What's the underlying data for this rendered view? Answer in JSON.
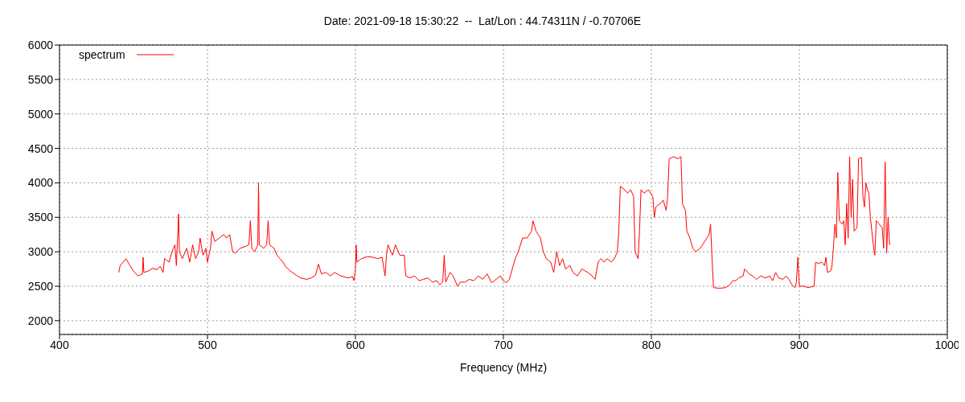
{
  "chart_data": {
    "type": "line",
    "title": "Date: 2021-09-18 15:30:22  --  Lat/Lon : 44.74311N / -0.70706E",
    "xlabel": "Frequency (MHz)",
    "x": [
      440,
      441,
      443,
      445,
      447,
      450,
      453,
      456,
      456.5,
      457,
      460,
      463,
      466,
      468,
      470,
      471,
      474,
      476,
      478,
      479,
      480.5,
      481,
      483,
      486,
      488,
      490,
      492,
      494,
      495,
      497,
      499,
      500,
      502,
      503,
      505,
      508,
      511,
      513,
      515,
      517,
      519,
      522,
      526,
      528,
      529,
      530,
      532,
      534,
      534.5,
      535,
      538,
      540,
      541,
      542,
      545,
      547,
      549,
      551,
      553,
      556,
      560,
      563,
      567,
      570,
      573,
      575,
      577,
      580,
      583,
      586,
      590,
      595,
      598,
      599,
      600,
      600.5,
      601,
      604,
      608,
      612,
      615,
      618,
      620,
      621,
      622,
      625,
      627,
      630,
      633,
      634,
      637,
      640,
      643,
      646,
      649,
      652,
      655,
      657,
      659,
      660,
      661,
      664,
      666,
      669,
      671,
      674,
      677,
      680,
      683,
      686,
      689,
      692,
      695,
      698,
      700,
      702,
      704,
      706,
      708,
      710,
      713,
      716,
      719,
      720,
      722,
      725,
      727,
      729,
      732,
      734,
      736,
      738,
      740,
      742,
      745,
      747,
      750,
      753,
      757,
      760,
      762,
      764,
      766,
      768,
      770,
      773,
      775,
      777,
      778,
      779,
      782,
      784,
      786,
      788,
      789,
      790,
      791,
      792,
      793,
      795,
      798,
      801,
      802,
      803,
      806,
      808,
      810,
      811,
      812,
      815,
      818,
      820,
      821,
      823,
      824,
      826,
      828,
      830,
      833,
      836,
      839,
      840,
      841,
      842,
      846,
      850,
      853,
      855,
      857,
      859,
      862,
      863,
      866,
      869,
      871,
      874,
      877,
      880,
      882,
      884,
      886,
      889,
      891,
      893,
      895,
      897,
      898,
      899,
      900,
      903,
      906,
      910,
      911,
      913,
      915,
      917,
      918,
      919,
      921,
      922,
      923,
      924,
      925,
      926,
      927,
      929,
      930,
      931,
      932,
      933,
      934,
      935,
      936,
      937,
      939,
      940,
      942,
      943,
      944,
      945,
      946,
      947,
      948,
      949,
      950,
      951,
      952,
      954,
      956,
      957,
      958,
      959,
      960,
      961
    ],
    "series": [
      {
        "name": "spectrum",
        "color": "#ff0000",
        "values": [
          2700,
          2800,
          2850,
          2900,
          2820,
          2720,
          2650,
          2680,
          2920,
          2700,
          2720,
          2760,
          2740,
          2790,
          2700,
          2900,
          2850,
          3000,
          3100,
          2800,
          3550,
          3000,
          2900,
          3050,
          2850,
          3100,
          2900,
          3000,
          3200,
          2950,
          3050,
          2850,
          3050,
          3300,
          3150,
          3200,
          3250,
          3200,
          3250,
          3000,
          2980,
          3050,
          3080,
          3100,
          3450,
          3050,
          3000,
          3100,
          4000,
          3100,
          3050,
          3100,
          3450,
          3100,
          3050,
          2950,
          2900,
          2850,
          2780,
          2720,
          2660,
          2620,
          2600,
          2620,
          2660,
          2820,
          2680,
          2700,
          2650,
          2700,
          2650,
          2620,
          2640,
          2580,
          2750,
          3100,
          2850,
          2900,
          2930,
          2920,
          2900,
          2920,
          2650,
          2950,
          3100,
          2950,
          3100,
          2950,
          2950,
          2650,
          2620,
          2650,
          2580,
          2600,
          2620,
          2560,
          2580,
          2520,
          2560,
          2950,
          2560,
          2700,
          2650,
          2500,
          2560,
          2560,
          2600,
          2580,
          2650,
          2600,
          2680,
          2550,
          2600,
          2650,
          2580,
          2550,
          2600,
          2750,
          2900,
          3000,
          3200,
          3200,
          3300,
          3450,
          3300,
          3200,
          3000,
          2900,
          2850,
          2700,
          3000,
          2800,
          2900,
          2750,
          2800,
          2700,
          2650,
          2750,
          2700,
          2650,
          2600,
          2850,
          2900,
          2850,
          2900,
          2850,
          2900,
          3000,
          3300,
          3950,
          3900,
          3850,
          3900,
          3800,
          3000,
          2950,
          2900,
          3300,
          3900,
          3850,
          3900,
          3800,
          3500,
          3650,
          3700,
          3750,
          3600,
          3800,
          4350,
          4380,
          4350,
          4380,
          3700,
          3600,
          3300,
          3200,
          3050,
          3000,
          3050,
          3150,
          3250,
          3400,
          2900,
          2480,
          2470,
          2480,
          2520,
          2580,
          2580,
          2620,
          2650,
          2750,
          2680,
          2640,
          2600,
          2650,
          2620,
          2650,
          2580,
          2700,
          2620,
          2600,
          2650,
          2600,
          2520,
          2480,
          2550,
          2920,
          2500,
          2500,
          2480,
          2500,
          2850,
          2830,
          2850,
          2800,
          2920,
          2700,
          2720,
          2780,
          3050,
          3400,
          3200,
          4150,
          3450,
          3400,
          3450,
          3100,
          3700,
          3200,
          4380,
          3500,
          4050,
          3300,
          3350,
          4350,
          4370,
          3800,
          3650,
          4000,
          3900,
          3850,
          3500,
          3300,
          3100,
          2950,
          3450,
          3400,
          3350,
          3050,
          4300,
          2980,
          3500,
          3100
        ]
      }
    ],
    "xlim": [
      400,
      1000
    ],
    "xticks": [
      400,
      500,
      600,
      700,
      800,
      900,
      1000
    ],
    "ylim": [
      1800,
      6000
    ],
    "yticks": [
      2000,
      2500,
      3000,
      3500,
      4000,
      4500,
      5000,
      5500,
      6000
    ],
    "grid": true,
    "legend": "top left",
    "line_style": "solid"
  }
}
